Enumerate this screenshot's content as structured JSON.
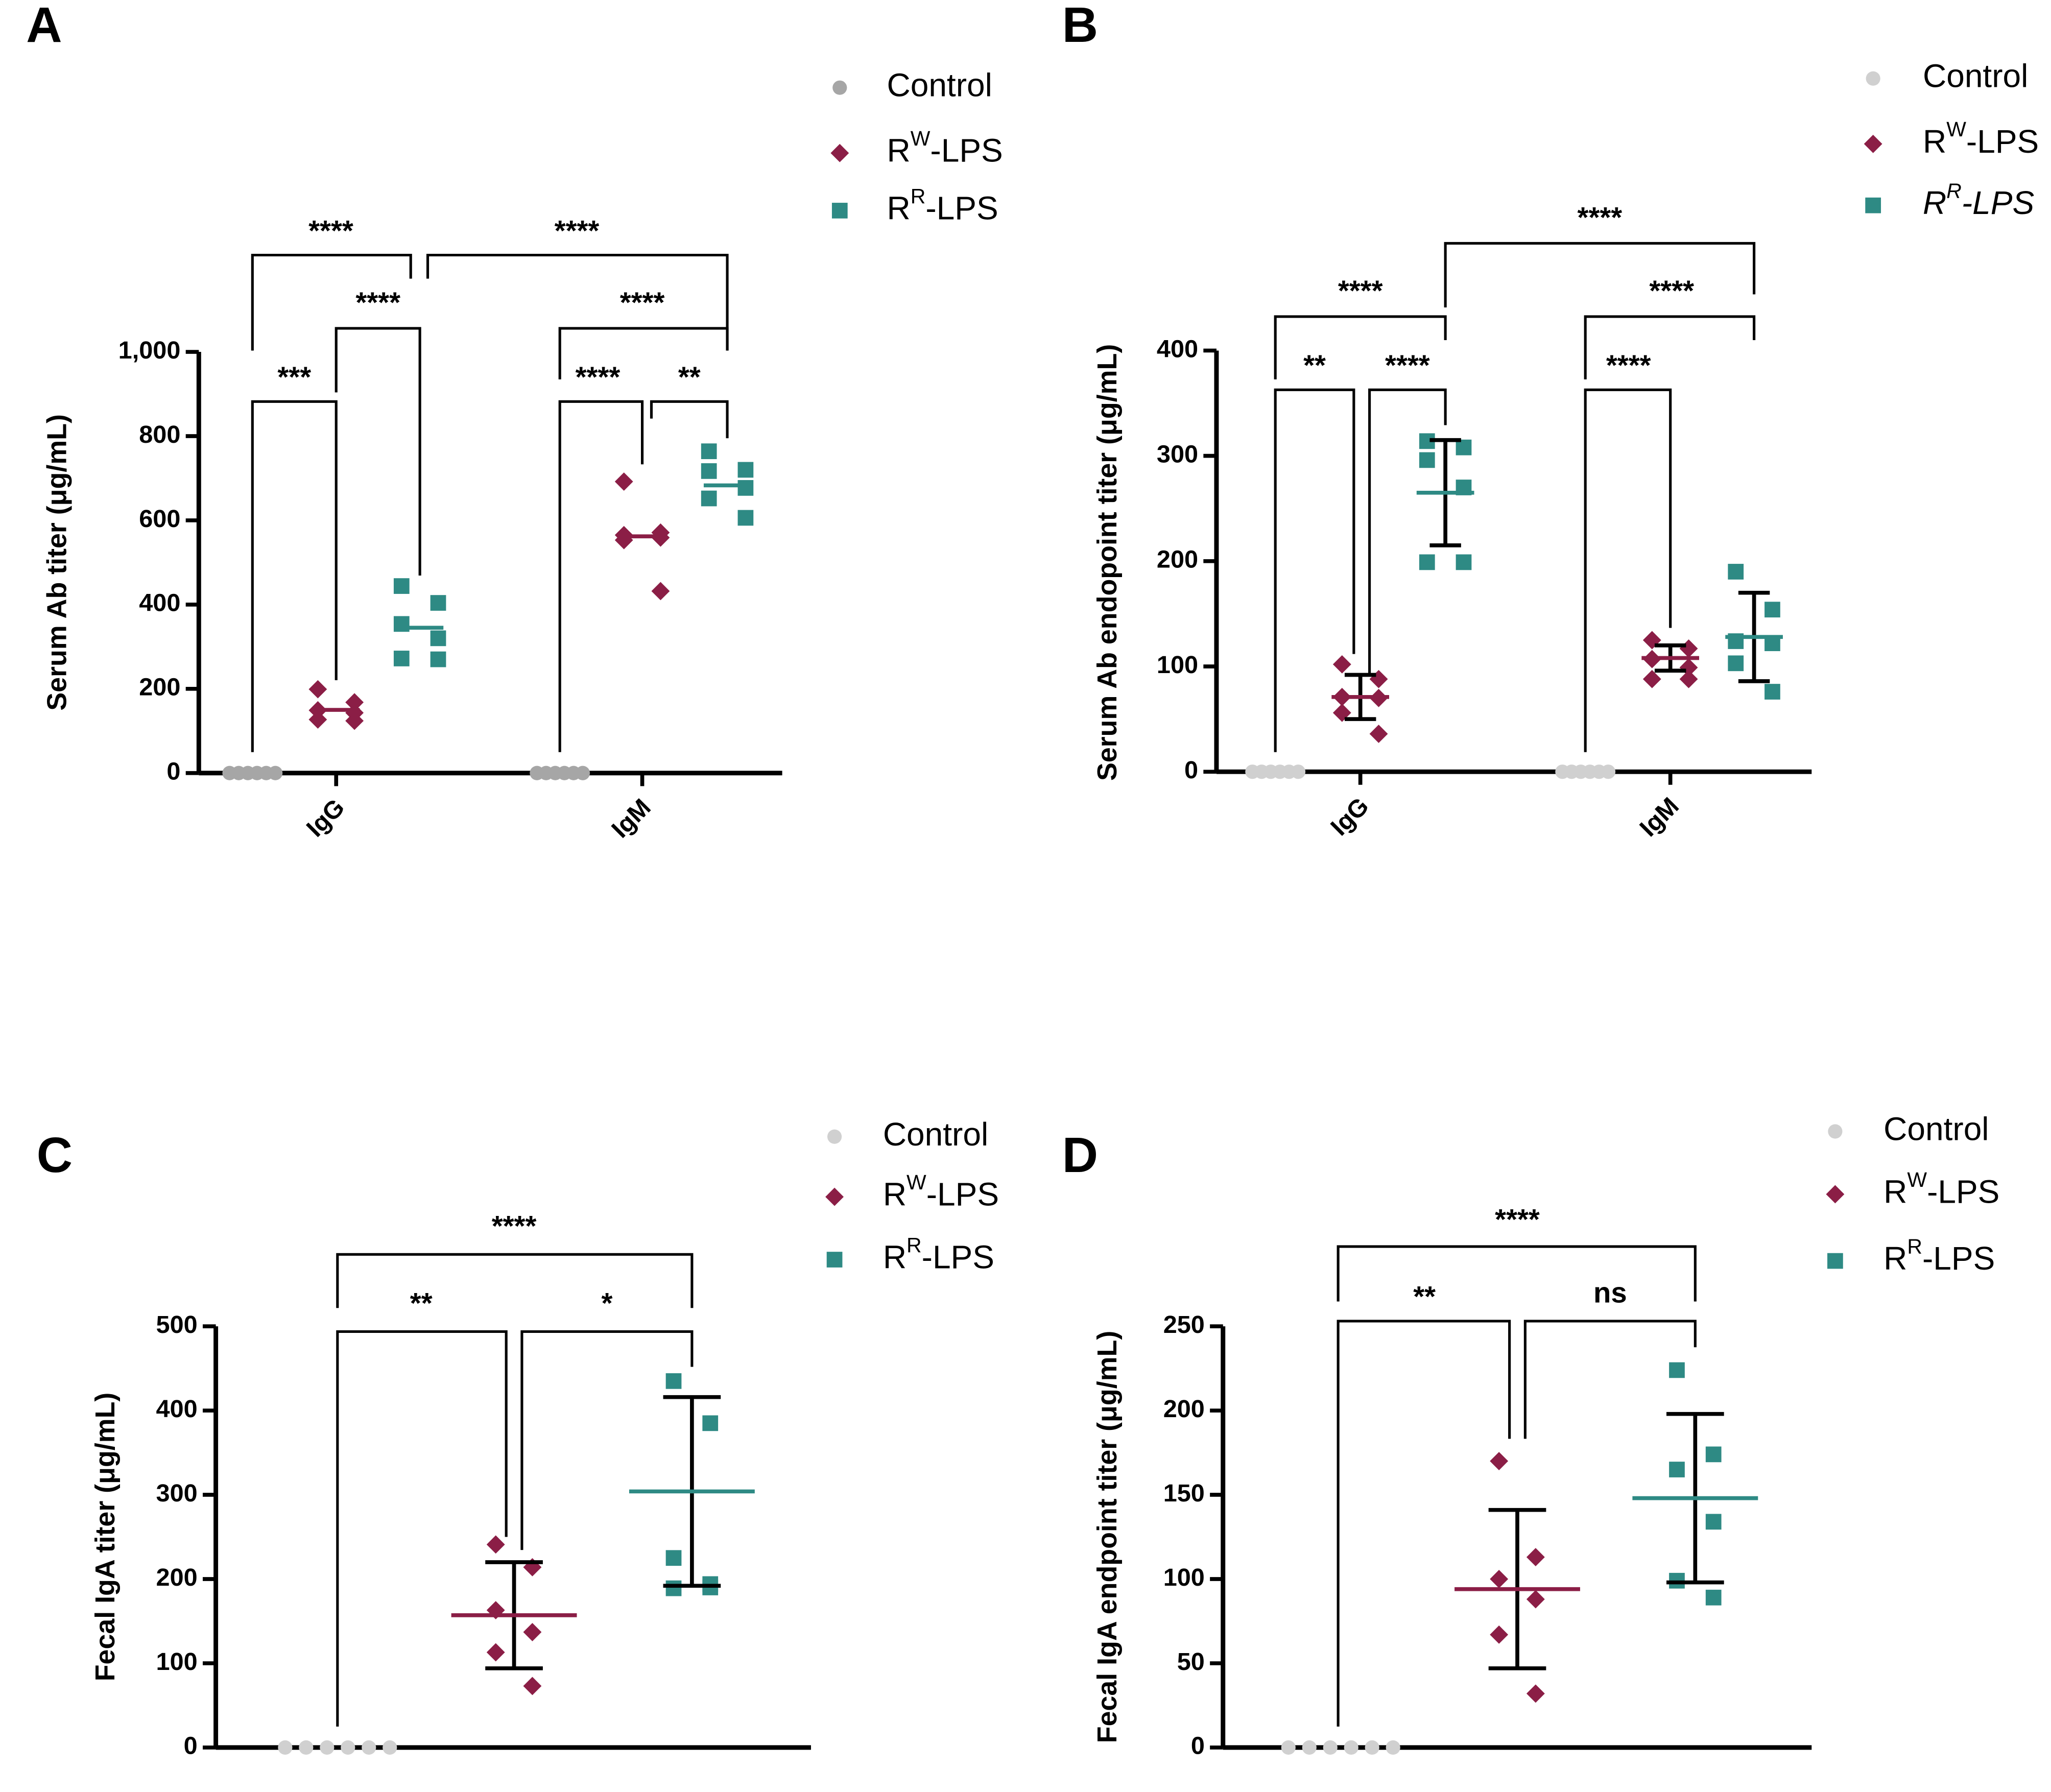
{
  "chart_data": [
    {
      "type": "dot",
      "panel": "A",
      "ylabel": "Serum Ab titer (μg/mL)",
      "categories": [
        "IgG",
        "IgM"
      ],
      "ylim": [
        0,
        1000
      ],
      "yticks": [
        0,
        200,
        400,
        600,
        800,
        {
          "value": 1000,
          "label": "1,000"
        }
      ],
      "series": [
        {
          "name": [
            "Control"
          ],
          "color": "#a6a6a6",
          "marker": "circle",
          "values": [
            [
              0,
              0,
              0,
              0,
              0,
              0
            ],
            [
              0,
              0,
              0,
              0,
              0,
              0
            ]
          ],
          "center": [
            null,
            null
          ],
          "error": [
            null,
            null
          ]
        },
        {
          "name": [
            "R",
            "W",
            "-LPS"
          ],
          "color": "#8b1e46",
          "marker": "diamond",
          "values": [
            [
              199,
              168,
              149,
              143,
              127,
              124
            ],
            [
              692,
              571,
              565,
              559,
              553,
              432
            ]
          ],
          "center": [
            150,
            562
          ],
          "error": [
            null,
            null
          ]
        },
        {
          "name": [
            "R",
            "R",
            "-LPS"
          ],
          "color": "#2e8a84",
          "marker": "square",
          "values": [
            [
              444,
              404,
              354,
              320,
              272,
              270
            ],
            [
              764,
              720,
              717,
              677,
              652,
              606
            ]
          ],
          "center": [
            345,
            683
          ],
          "error": [
            null,
            null
          ]
        }
      ],
      "annotations": [
        "***",
        "****",
        "****",
        "****",
        "****",
        "**",
        "****"
      ]
    },
    {
      "type": "dot",
      "panel": "B",
      "ylabel": "Serum Ab endopoint titer (μg/mL)",
      "categories": [
        "IgG",
        "IgM"
      ],
      "ylim": [
        0,
        400
      ],
      "yticks": [
        0,
        100,
        200,
        300,
        400
      ],
      "series": [
        {
          "name": [
            "Control"
          ],
          "color": "#d0d0d0",
          "marker": "circle",
          "values": [
            [
              0,
              0,
              0,
              0,
              0,
              0
            ],
            [
              0,
              0,
              0,
              0,
              0,
              0
            ]
          ],
          "center": [
            null,
            null
          ],
          "error": [
            null,
            null
          ]
        },
        {
          "name": [
            "R",
            "W",
            "-LPS"
          ],
          "color": "#8b1e46",
          "marker": "diamond",
          "values": [
            [
              102,
              88,
              71,
              70,
              56,
              36
            ],
            [
              125,
              117,
              107,
              99,
              88,
              88
            ]
          ],
          "center": [
            71,
            108
          ],
          "error": [
            21,
            12
          ]
        },
        {
          "name": [
            "R",
            "R",
            "-LPS"
          ],
          "color": "#2e8a84",
          "marker": "square",
          "italic": true,
          "values": [
            [
              314,
              308,
              296,
              270,
              199,
              199
            ],
            [
              190,
              154,
              124,
              122,
              103,
              76
            ]
          ],
          "center": [
            265,
            128
          ],
          "error": [
            50,
            42
          ]
        }
      ],
      "annotations": [
        "**",
        "****",
        "****",
        "****",
        "****",
        "****"
      ]
    },
    {
      "type": "dot",
      "panel": "C",
      "ylabel": "Fecal IgA titer (μg/mL)",
      "ylim": [
        0,
        500
      ],
      "yticks": [
        0,
        100,
        200,
        300,
        400,
        500
      ],
      "series": [
        {
          "name": [
            "Control"
          ],
          "color": "#d0d0d0",
          "marker": "circle",
          "values": [
            [
              0,
              0,
              0,
              0,
              0,
              0
            ]
          ],
          "center": [
            null
          ],
          "error": [
            null
          ]
        },
        {
          "name": [
            "R",
            "W",
            "-LPS"
          ],
          "color": "#8b1e46",
          "marker": "diamond",
          "values": [
            [
              241,
              214,
              163,
              137,
              113,
              73
            ]
          ],
          "center": [
            157
          ],
          "error": [
            63
          ]
        },
        {
          "name": [
            "R",
            "R",
            "-LPS"
          ],
          "color": "#2e8a84",
          "marker": "square",
          "values": [
            [
              435,
              385,
              225,
              194,
              189,
              190
            ]
          ],
          "center": [
            304
          ],
          "error": [
            112
          ]
        }
      ],
      "annotations": [
        "****",
        "**",
        "*"
      ]
    },
    {
      "type": "dot",
      "panel": "D",
      "ylabel": "Fecal IgA endpoint titer (μg/mL)",
      "ylim": [
        0,
        250
      ],
      "yticks": [
        0,
        50,
        100,
        150,
        200,
        250
      ],
      "series": [
        {
          "name": [
            "Control"
          ],
          "color": "#d0d0d0",
          "marker": "circle",
          "values": [
            [
              0,
              0,
              0,
              0,
              0,
              0
            ]
          ],
          "center": [
            null
          ],
          "error": [
            null
          ]
        },
        {
          "name": [
            "R",
            "W",
            "-LPS"
          ],
          "color": "#8b1e46",
          "marker": "diamond",
          "values": [
            [
              170,
              113,
              100,
              88,
              67,
              32
            ]
          ],
          "center": [
            94
          ],
          "error": [
            47
          ]
        },
        {
          "name": [
            "R",
            "R",
            "-LPS"
          ],
          "color": "#2e8a84",
          "marker": "square",
          "values": [
            [
              224,
              174,
              165,
              134,
              99,
              89
            ]
          ],
          "center": [
            148
          ],
          "error": [
            50
          ]
        }
      ],
      "annotations": [
        "****",
        "**",
        "ns"
      ]
    }
  ]
}
